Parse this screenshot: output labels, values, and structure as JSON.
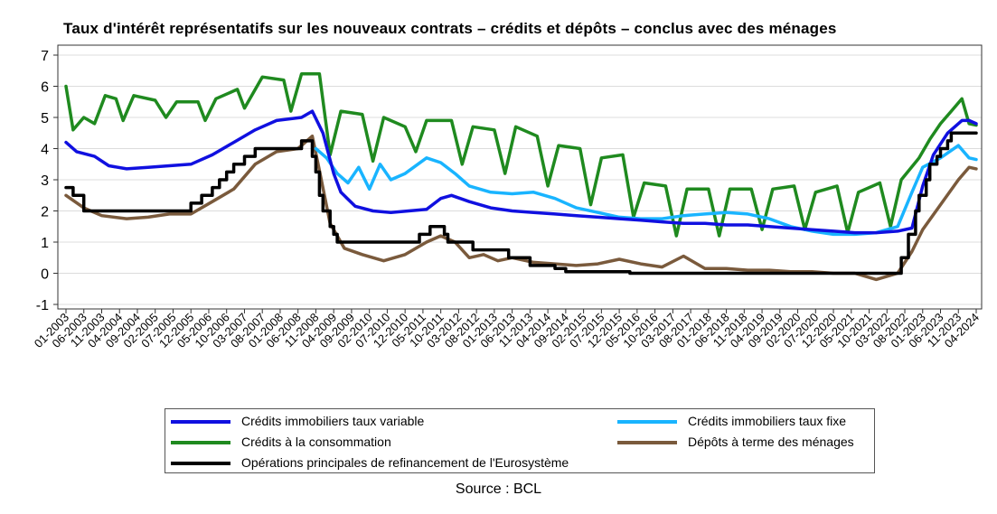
{
  "chart_data": {
    "type": "line",
    "title": "Taux d'intérêt représentatifs sur les nouveaux contrats – crédits et dépôts – conclus avec des ménages",
    "source": "Source : BCL",
    "xlabel": "",
    "ylabel": "",
    "ylim": [
      -1,
      7
    ],
    "y_ticks": [
      -1,
      0,
      1,
      2,
      3,
      4,
      5,
      6,
      7
    ],
    "grid": true,
    "legend_position": "bottom",
    "x_tick_labels": [
      "01-2003",
      "06-2003",
      "11-2003",
      "04-2004",
      "09-2004",
      "02-2005",
      "07-2005",
      "12-2005",
      "05-2006",
      "10-2006",
      "03-2007",
      "08-2007",
      "01-2008",
      "06-2008",
      "11-2008",
      "04-2009",
      "09-2009",
      "02-2010",
      "07-2010",
      "12-2010",
      "05-2011",
      "10-2011",
      "03-2012",
      "08-2012",
      "01-2013",
      "06-2013",
      "11-2013",
      "04-2014",
      "09-2014",
      "02-2015",
      "07-2015",
      "12-2015",
      "05-2016",
      "10-2016",
      "03-2017",
      "08-2017",
      "01-2018",
      "06-2018",
      "11-2018",
      "04-2019",
      "09-2019",
      "02-2020",
      "07-2020",
      "12-2020",
      "05-2021",
      "10-2021",
      "03-2022",
      "08-2022",
      "01-2023",
      "06-2023",
      "11-2023",
      "04-2024"
    ],
    "x_start": "01-2003",
    "x_end": "04-2024",
    "series": [
      {
        "name": "Crédits immobiliers taux variable",
        "color": "#1010e0",
        "points": [
          [
            "01-2003",
            4.2
          ],
          [
            "04-2003",
            3.9
          ],
          [
            "09-2003",
            3.75
          ],
          [
            "01-2004",
            3.45
          ],
          [
            "06-2004",
            3.35
          ],
          [
            "12-2004",
            3.4
          ],
          [
            "06-2005",
            3.45
          ],
          [
            "12-2005",
            3.5
          ],
          [
            "06-2006",
            3.8
          ],
          [
            "12-2006",
            4.2
          ],
          [
            "06-2007",
            4.6
          ],
          [
            "12-2007",
            4.9
          ],
          [
            "07-2008",
            5.0
          ],
          [
            "10-2008",
            5.2
          ],
          [
            "01-2009",
            4.5
          ],
          [
            "04-2009",
            3.2
          ],
          [
            "06-2009",
            2.6
          ],
          [
            "10-2009",
            2.15
          ],
          [
            "03-2010",
            2.0
          ],
          [
            "08-2010",
            1.95
          ],
          [
            "01-2011",
            2.0
          ],
          [
            "06-2011",
            2.05
          ],
          [
            "10-2011",
            2.4
          ],
          [
            "01-2012",
            2.5
          ],
          [
            "06-2012",
            2.3
          ],
          [
            "12-2012",
            2.1
          ],
          [
            "06-2013",
            2.0
          ],
          [
            "12-2013",
            1.95
          ],
          [
            "06-2014",
            1.9
          ],
          [
            "12-2014",
            1.85
          ],
          [
            "06-2015",
            1.8
          ],
          [
            "12-2015",
            1.75
          ],
          [
            "06-2016",
            1.7
          ],
          [
            "12-2016",
            1.65
          ],
          [
            "06-2017",
            1.6
          ],
          [
            "12-2017",
            1.6
          ],
          [
            "06-2018",
            1.55
          ],
          [
            "12-2018",
            1.55
          ],
          [
            "06-2019",
            1.5
          ],
          [
            "12-2019",
            1.45
          ],
          [
            "06-2020",
            1.4
          ],
          [
            "12-2020",
            1.35
          ],
          [
            "06-2021",
            1.3
          ],
          [
            "12-2021",
            1.3
          ],
          [
            "06-2022",
            1.35
          ],
          [
            "10-2022",
            1.45
          ],
          [
            "01-2023",
            2.8
          ],
          [
            "04-2023",
            3.8
          ],
          [
            "08-2023",
            4.5
          ],
          [
            "12-2023",
            4.9
          ],
          [
            "02-2024",
            4.9
          ],
          [
            "04-2024",
            4.8
          ]
        ]
      },
      {
        "name": "Crédits immobiliers taux fixe",
        "color": "#19b4ff",
        "points": [
          [
            "11-2008",
            4.0
          ],
          [
            "02-2009",
            3.7
          ],
          [
            "05-2009",
            3.2
          ],
          [
            "08-2009",
            2.9
          ],
          [
            "11-2009",
            3.4
          ],
          [
            "02-2010",
            2.7
          ],
          [
            "05-2010",
            3.5
          ],
          [
            "08-2010",
            3.0
          ],
          [
            "12-2010",
            3.2
          ],
          [
            "06-2011",
            3.7
          ],
          [
            "10-2011",
            3.55
          ],
          [
            "02-2012",
            3.2
          ],
          [
            "06-2012",
            2.8
          ],
          [
            "12-2012",
            2.6
          ],
          [
            "06-2013",
            2.55
          ],
          [
            "12-2013",
            2.6
          ],
          [
            "06-2014",
            2.4
          ],
          [
            "12-2014",
            2.1
          ],
          [
            "06-2015",
            1.95
          ],
          [
            "12-2015",
            1.8
          ],
          [
            "06-2016",
            1.75
          ],
          [
            "12-2016",
            1.75
          ],
          [
            "06-2017",
            1.85
          ],
          [
            "12-2017",
            1.9
          ],
          [
            "06-2018",
            1.95
          ],
          [
            "12-2018",
            1.9
          ],
          [
            "06-2019",
            1.75
          ],
          [
            "12-2019",
            1.5
          ],
          [
            "06-2020",
            1.35
          ],
          [
            "12-2020",
            1.25
          ],
          [
            "06-2021",
            1.25
          ],
          [
            "12-2021",
            1.3
          ],
          [
            "06-2022",
            1.5
          ],
          [
            "10-2022",
            2.6
          ],
          [
            "01-2023",
            3.4
          ],
          [
            "06-2023",
            3.7
          ],
          [
            "11-2023",
            4.1
          ],
          [
            "02-2024",
            3.7
          ],
          [
            "04-2024",
            3.65
          ]
        ]
      },
      {
        "name": "Crédits à la consommation",
        "color": "#1f8a1f",
        "points": [
          [
            "01-2003",
            6.0
          ],
          [
            "03-2003",
            4.6
          ],
          [
            "06-2003",
            5.0
          ],
          [
            "09-2003",
            4.8
          ],
          [
            "12-2003",
            5.7
          ],
          [
            "03-2004",
            5.6
          ],
          [
            "05-2004",
            4.9
          ],
          [
            "08-2004",
            5.7
          ],
          [
            "02-2005",
            5.55
          ],
          [
            "05-2005",
            5.0
          ],
          [
            "08-2005",
            5.5
          ],
          [
            "02-2006",
            5.5
          ],
          [
            "04-2006",
            4.9
          ],
          [
            "07-2006",
            5.6
          ],
          [
            "01-2007",
            5.9
          ],
          [
            "03-2007",
            5.3
          ],
          [
            "08-2007",
            6.3
          ],
          [
            "02-2008",
            6.2
          ],
          [
            "04-2008",
            5.2
          ],
          [
            "07-2008",
            6.4
          ],
          [
            "12-2008",
            6.4
          ],
          [
            "03-2009",
            3.8
          ],
          [
            "06-2009",
            5.2
          ],
          [
            "12-2009",
            5.1
          ],
          [
            "03-2010",
            3.6
          ],
          [
            "06-2010",
            5.0
          ],
          [
            "12-2010",
            4.7
          ],
          [
            "03-2011",
            3.9
          ],
          [
            "06-2011",
            4.9
          ],
          [
            "01-2012",
            4.9
          ],
          [
            "04-2012",
            3.5
          ],
          [
            "07-2012",
            4.7
          ],
          [
            "01-2013",
            4.6
          ],
          [
            "04-2013",
            3.2
          ],
          [
            "07-2013",
            4.7
          ],
          [
            "01-2014",
            4.4
          ],
          [
            "04-2014",
            2.8
          ],
          [
            "07-2014",
            4.1
          ],
          [
            "01-2015",
            4.0
          ],
          [
            "04-2015",
            2.2
          ],
          [
            "07-2015",
            3.7
          ],
          [
            "01-2016",
            3.8
          ],
          [
            "04-2016",
            1.8
          ],
          [
            "07-2016",
            2.9
          ],
          [
            "01-2017",
            2.8
          ],
          [
            "04-2017",
            1.2
          ],
          [
            "07-2017",
            2.7
          ],
          [
            "01-2018",
            2.7
          ],
          [
            "04-2018",
            1.2
          ],
          [
            "07-2018",
            2.7
          ],
          [
            "01-2019",
            2.7
          ],
          [
            "04-2019",
            1.4
          ],
          [
            "07-2019",
            2.7
          ],
          [
            "01-2020",
            2.8
          ],
          [
            "04-2020",
            1.4
          ],
          [
            "07-2020",
            2.6
          ],
          [
            "01-2021",
            2.8
          ],
          [
            "04-2021",
            1.3
          ],
          [
            "07-2021",
            2.6
          ],
          [
            "01-2022",
            2.9
          ],
          [
            "04-2022",
            1.5
          ],
          [
            "07-2022",
            3.0
          ],
          [
            "12-2022",
            3.7
          ],
          [
            "03-2023",
            4.3
          ],
          [
            "06-2023",
            4.8
          ],
          [
            "09-2023",
            5.2
          ],
          [
            "12-2023",
            5.6
          ],
          [
            "02-2024",
            4.8
          ],
          [
            "04-2024",
            4.75
          ]
        ]
      },
      {
        "name": "Dépôts à terme des ménages",
        "color": "#7a5a3c",
        "points": [
          [
            "01-2003",
            2.5
          ],
          [
            "06-2003",
            2.1
          ],
          [
            "11-2003",
            1.85
          ],
          [
            "06-2004",
            1.75
          ],
          [
            "12-2004",
            1.8
          ],
          [
            "06-2005",
            1.9
          ],
          [
            "12-2005",
            1.9
          ],
          [
            "06-2006",
            2.3
          ],
          [
            "12-2006",
            2.7
          ],
          [
            "06-2007",
            3.5
          ],
          [
            "12-2007",
            3.9
          ],
          [
            "06-2008",
            4.0
          ],
          [
            "10-2008",
            4.4
          ],
          [
            "12-2008",
            3.3
          ],
          [
            "03-2009",
            1.6
          ],
          [
            "07-2009",
            0.8
          ],
          [
            "12-2009",
            0.6
          ],
          [
            "06-2010",
            0.4
          ],
          [
            "12-2010",
            0.6
          ],
          [
            "06-2011",
            1.0
          ],
          [
            "10-2011",
            1.2
          ],
          [
            "02-2012",
            1.0
          ],
          [
            "06-2012",
            0.5
          ],
          [
            "10-2012",
            0.6
          ],
          [
            "02-2013",
            0.4
          ],
          [
            "06-2013",
            0.5
          ],
          [
            "12-2013",
            0.35
          ],
          [
            "06-2014",
            0.3
          ],
          [
            "12-2014",
            0.25
          ],
          [
            "06-2015",
            0.3
          ],
          [
            "12-2015",
            0.45
          ],
          [
            "06-2016",
            0.3
          ],
          [
            "12-2016",
            0.2
          ],
          [
            "06-2017",
            0.55
          ],
          [
            "12-2017",
            0.15
          ],
          [
            "06-2018",
            0.15
          ],
          [
            "12-2018",
            0.1
          ],
          [
            "06-2019",
            0.1
          ],
          [
            "12-2019",
            0.05
          ],
          [
            "06-2020",
            0.05
          ],
          [
            "12-2020",
            0.0
          ],
          [
            "06-2021",
            0.0
          ],
          [
            "12-2021",
            -0.2
          ],
          [
            "06-2022",
            0.0
          ],
          [
            "10-2022",
            0.7
          ],
          [
            "01-2023",
            1.4
          ],
          [
            "06-2023",
            2.2
          ],
          [
            "11-2023",
            3.0
          ],
          [
            "02-2024",
            3.4
          ],
          [
            "04-2024",
            3.35
          ]
        ]
      },
      {
        "name": "Opérations principales de refinancement de l'Eurosystème",
        "color": "#000000",
        "step": true,
        "points": [
          [
            "01-2003",
            2.75
          ],
          [
            "03-2003",
            2.5
          ],
          [
            "06-2003",
            2.0
          ],
          [
            "06-2005",
            2.0
          ],
          [
            "12-2005",
            2.25
          ],
          [
            "03-2006",
            2.5
          ],
          [
            "06-2006",
            2.75
          ],
          [
            "08-2006",
            3.0
          ],
          [
            "10-2006",
            3.25
          ],
          [
            "12-2006",
            3.5
          ],
          [
            "03-2007",
            3.75
          ],
          [
            "06-2007",
            4.0
          ],
          [
            "07-2008",
            4.25
          ],
          [
            "10-2008",
            3.75
          ],
          [
            "11-2008",
            3.25
          ],
          [
            "12-2008",
            2.5
          ],
          [
            "01-2009",
            2.0
          ],
          [
            "03-2009",
            1.5
          ],
          [
            "04-2009",
            1.25
          ],
          [
            "05-2009",
            1.0
          ],
          [
            "04-2011",
            1.25
          ],
          [
            "07-2011",
            1.5
          ],
          [
            "11-2011",
            1.25
          ],
          [
            "12-2011",
            1.0
          ],
          [
            "07-2012",
            0.75
          ],
          [
            "05-2013",
            0.5
          ],
          [
            "11-2013",
            0.25
          ],
          [
            "06-2014",
            0.15
          ],
          [
            "09-2014",
            0.05
          ],
          [
            "03-2016",
            0.0
          ],
          [
            "07-2022",
            0.5
          ],
          [
            "09-2022",
            1.25
          ],
          [
            "11-2022",
            2.0
          ],
          [
            "12-2022",
            2.5
          ],
          [
            "02-2023",
            3.0
          ],
          [
            "03-2023",
            3.5
          ],
          [
            "05-2023",
            3.75
          ],
          [
            "06-2023",
            4.0
          ],
          [
            "08-2023",
            4.25
          ],
          [
            "09-2023",
            4.5
          ],
          [
            "04-2024",
            4.5
          ]
        ]
      }
    ]
  }
}
